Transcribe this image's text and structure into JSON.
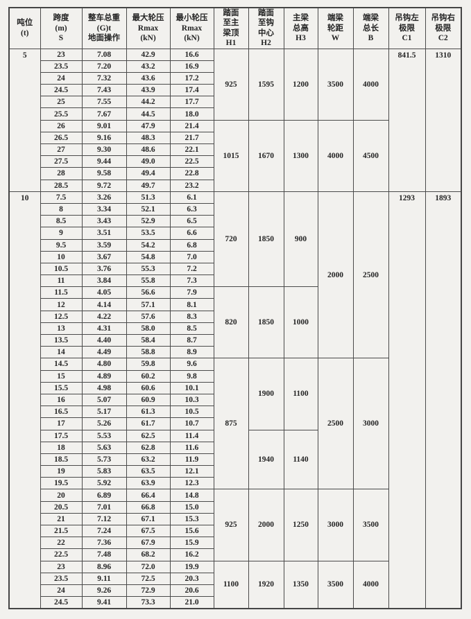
{
  "doc": {
    "headers": [
      {
        "id": "tonnage",
        "lines": [
          "吨位",
          "(t)"
        ]
      },
      {
        "id": "span",
        "lines": [
          "跨度",
          "(m)",
          "S"
        ]
      },
      {
        "id": "total-weight",
        "lines": [
          "整车总重",
          "(G)t",
          "地面操作"
        ]
      },
      {
        "id": "max-wheel-load",
        "lines": [
          "最大轮压",
          "Rmax",
          "(kN)"
        ]
      },
      {
        "id": "min-wheel-load",
        "lines": [
          "最小轮压",
          "Rmax",
          "(kN)"
        ]
      },
      {
        "id": "h1",
        "lines": [
          "踏面",
          "至主",
          "梁顶",
          "H1"
        ]
      },
      {
        "id": "h2",
        "lines": [
          "踏面",
          "至钩",
          "中心",
          "H2"
        ]
      },
      {
        "id": "h3",
        "lines": [
          "主梁",
          "总高",
          "H3"
        ]
      },
      {
        "id": "w",
        "lines": [
          "端梁",
          "轮距",
          "W"
        ]
      },
      {
        "id": "b",
        "lines": [
          "端梁",
          "总长",
          "B"
        ]
      },
      {
        "id": "c1",
        "lines": [
          "吊钩左",
          "极限",
          "C1"
        ]
      },
      {
        "id": "c2",
        "lines": [
          "吊钩右",
          "极限",
          "C2"
        ]
      }
    ],
    "sections": [
      {
        "tonnage": "5",
        "c1": "841.5",
        "c2": "1310",
        "rows": [
          [
            "23",
            "7.08",
            "42.9",
            "16.6"
          ],
          [
            "23.5",
            "7.20",
            "43.2",
            "16.9"
          ],
          [
            "24",
            "7.32",
            "43.6",
            "17.2"
          ],
          [
            "24.5",
            "7.43",
            "43.9",
            "17.4"
          ],
          [
            "25",
            "7.55",
            "44.2",
            "17.7"
          ],
          [
            "25.5",
            "7.67",
            "44.5",
            "18.0"
          ],
          [
            "26",
            "9.01",
            "47.9",
            "21.4"
          ],
          [
            "26.5",
            "9.16",
            "48.3",
            "21.7"
          ],
          [
            "27",
            "9.30",
            "48.6",
            "22.1"
          ],
          [
            "27.5",
            "9.44",
            "49.0",
            "22.5"
          ],
          [
            "28",
            "9.58",
            "49.4",
            "22.8"
          ],
          [
            "28.5",
            "9.72",
            "49.7",
            "23.2"
          ]
        ],
        "merges": {
          "h1": [
            [
              6,
              "925"
            ],
            [
              6,
              "1015"
            ]
          ],
          "h2": [
            [
              6,
              "1595"
            ],
            [
              6,
              "1670"
            ]
          ],
          "h3": [
            [
              6,
              "1200"
            ],
            [
              6,
              "1300"
            ]
          ],
          "w": [
            [
              6,
              "3500"
            ],
            [
              6,
              "4000"
            ]
          ],
          "b": [
            [
              6,
              "4000"
            ],
            [
              6,
              "4500"
            ]
          ]
        }
      },
      {
        "tonnage": "10",
        "c1": "1293",
        "c2": "1893",
        "rows": [
          [
            "7.5",
            "3.26",
            "51.3",
            "6.1"
          ],
          [
            "8",
            "3.34",
            "52.1",
            "6.3"
          ],
          [
            "8.5",
            "3.43",
            "52.9",
            "6.5"
          ],
          [
            "9",
            "3.51",
            "53.5",
            "6.6"
          ],
          [
            "9.5",
            "3.59",
            "54.2",
            "6.8"
          ],
          [
            "10",
            "3.67",
            "54.8",
            "7.0"
          ],
          [
            "10.5",
            "3.76",
            "55.3",
            "7.2"
          ],
          [
            "11",
            "3.84",
            "55.8",
            "7.3"
          ],
          [
            "11.5",
            "4.05",
            "56.6",
            "7.9"
          ],
          [
            "12",
            "4.14",
            "57.1",
            "8.1"
          ],
          [
            "12.5",
            "4.22",
            "57.6",
            "8.3"
          ],
          [
            "13",
            "4.31",
            "58.0",
            "8.5"
          ],
          [
            "13.5",
            "4.40",
            "58.4",
            "8.7"
          ],
          [
            "14",
            "4.49",
            "58.8",
            "8.9"
          ],
          [
            "14.5",
            "4.80",
            "59.8",
            "9.6"
          ],
          [
            "15",
            "4.89",
            "60.2",
            "9.8"
          ],
          [
            "15.5",
            "4.98",
            "60.6",
            "10.1"
          ],
          [
            "16",
            "5.07",
            "60.9",
            "10.3"
          ],
          [
            "16.5",
            "5.17",
            "61.3",
            "10.5"
          ],
          [
            "17",
            "5.26",
            "61.7",
            "10.7"
          ],
          [
            "17.5",
            "5.53",
            "62.5",
            "11.4"
          ],
          [
            "18",
            "5.63",
            "62.8",
            "11.6"
          ],
          [
            "18.5",
            "5.73",
            "63.2",
            "11.9"
          ],
          [
            "19",
            "5.83",
            "63.5",
            "12.1"
          ],
          [
            "19.5",
            "5.92",
            "63.9",
            "12.3"
          ],
          [
            "20",
            "6.89",
            "66.4",
            "14.8"
          ],
          [
            "20.5",
            "7.01",
            "66.8",
            "15.0"
          ],
          [
            "21",
            "7.12",
            "67.1",
            "15.3"
          ],
          [
            "21.5",
            "7.24",
            "67.5",
            "15.6"
          ],
          [
            "22",
            "7.36",
            "67.9",
            "15.9"
          ],
          [
            "22.5",
            "7.48",
            "68.2",
            "16.2"
          ],
          [
            "23",
            "8.96",
            "72.0",
            "19.9"
          ],
          [
            "23.5",
            "9.11",
            "72.5",
            "20.3"
          ],
          [
            "24",
            "9.26",
            "72.9",
            "20.6"
          ],
          [
            "24.5",
            "9.41",
            "73.3",
            "21.0"
          ]
        ],
        "merges": {
          "h1": [
            [
              8,
              "720"
            ],
            [
              6,
              "820"
            ],
            [
              11,
              "875"
            ],
            [
              6,
              "925"
            ],
            [
              4,
              "1100"
            ]
          ],
          "h2": [
            [
              8,
              "1850"
            ],
            [
              6,
              "1850"
            ],
            [
              6,
              "1900"
            ],
            [
              5,
              "1940"
            ],
            [
              6,
              "2000"
            ],
            [
              4,
              "1920"
            ]
          ],
          "h3": [
            [
              8,
              "900"
            ],
            [
              6,
              "1000"
            ],
            [
              6,
              "1100"
            ],
            [
              5,
              "1140"
            ],
            [
              6,
              "1250"
            ],
            [
              4,
              "1350"
            ]
          ],
          "w": [
            [
              14,
              "2000"
            ],
            [
              11,
              "2500"
            ],
            [
              6,
              "3000"
            ],
            [
              4,
              "3500"
            ]
          ],
          "b": [
            [
              14,
              "2500"
            ],
            [
              11,
              "3000"
            ],
            [
              6,
              "3500"
            ],
            [
              4,
              "4000"
            ]
          ]
        }
      }
    ]
  }
}
